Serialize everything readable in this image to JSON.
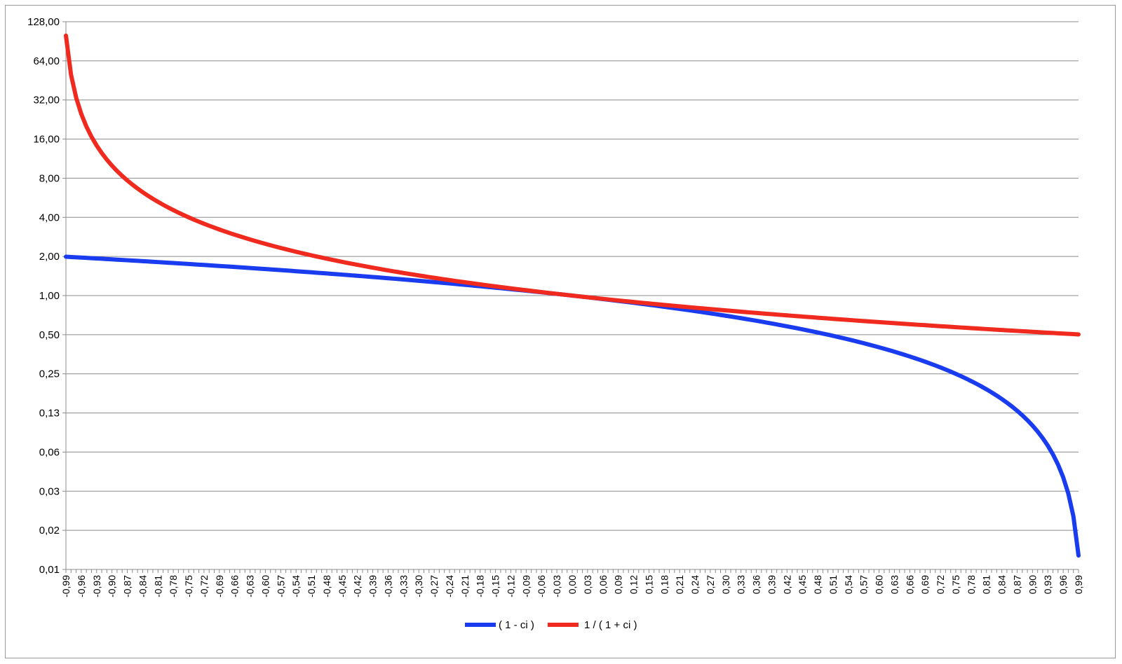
{
  "chart_data": {
    "type": "line",
    "title": "",
    "xlabel": "",
    "ylabel": "",
    "y_scale": "log2",
    "y_tick_labels": [
      "0,01",
      "0,02",
      "0,03",
      "0,06",
      "0,13",
      "0,25",
      "0,50",
      "1,00",
      "2,00",
      "4,00",
      "8,00",
      "16,00",
      "32,00",
      "64,00",
      "128,00"
    ],
    "y_tick_values": [
      0.0078125,
      0.015625,
      0.03125,
      0.0625,
      0.125,
      0.25,
      0.5,
      1,
      2,
      4,
      8,
      16,
      32,
      64,
      128
    ],
    "ylim": [
      0.0078125,
      128
    ],
    "x_tick_labels": [
      "-0,99",
      "-0,96",
      "-0,93",
      "-0,90",
      "-0,87",
      "-0,84",
      "-0,81",
      "-0,78",
      "-0,75",
      "-0,72",
      "-0,69",
      "-0,66",
      "-0,63",
      "-0,60",
      "-0,57",
      "-0,54",
      "-0,51",
      "-0,48",
      "-0,45",
      "-0,42",
      "-0,39",
      "-0,36",
      "-0,33",
      "-0,30",
      "-0,27",
      "-0,24",
      "-0,21",
      "-0,18",
      "-0,15",
      "-0,12",
      "-0,09",
      "-0,06",
      "-0,03",
      "0,00",
      "0,03",
      "0,06",
      "0,09",
      "0,12",
      "0,15",
      "0,18",
      "0,21",
      "0,24",
      "0,27",
      "0,30",
      "0,33",
      "0,36",
      "0,39",
      "0,42",
      "0,45",
      "0,48",
      "0,51",
      "0,54",
      "0,57",
      "0,60",
      "0,63",
      "0,66",
      "0,69",
      "0,72",
      "0,75",
      "0,78",
      "0,81",
      "0,84",
      "0,87",
      "0,90",
      "0,93",
      "0,96",
      "0,99"
    ],
    "xlim": [
      -0.99,
      0.99
    ],
    "x_step": 0.01,
    "grid": "horizontal",
    "legend_position": "bottom",
    "series": [
      {
        "name": "( 1 - ci )",
        "color": "#1a3cf0",
        "formula": "1 - x"
      },
      {
        "name": "1 / ( 1 + ci )",
        "color": "#f02a1e",
        "formula": "1 / (1 + x)"
      }
    ]
  }
}
